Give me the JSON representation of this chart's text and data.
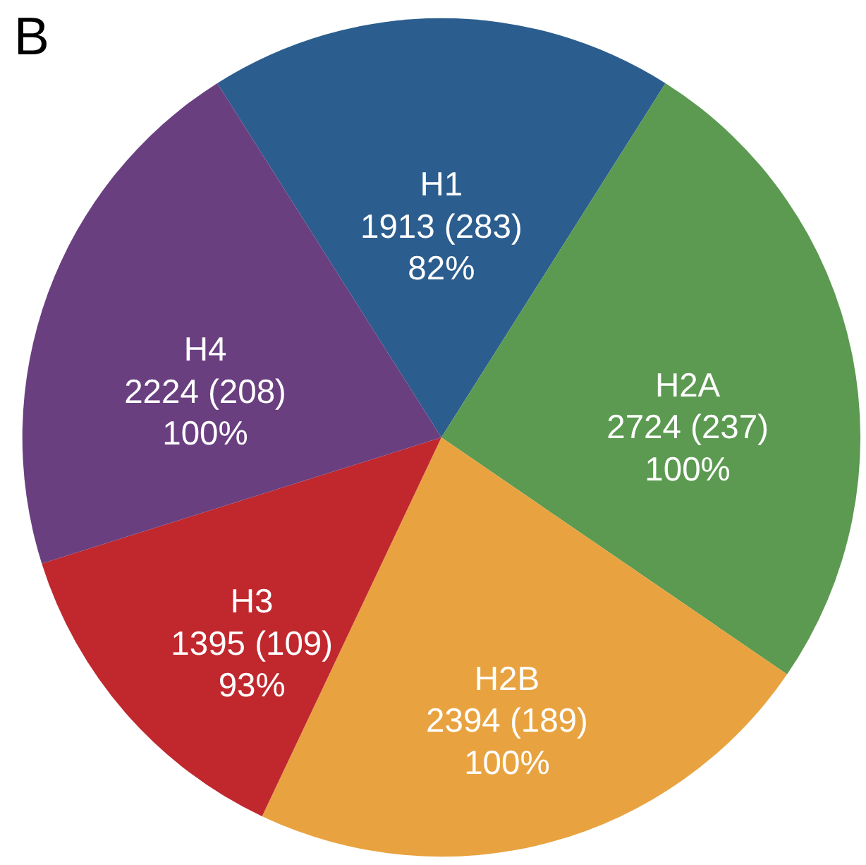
{
  "chart_data": {
    "type": "pie",
    "categories": [
      "H1",
      "H2A",
      "H2B",
      "H3",
      "H4"
    ],
    "values": [
      1913,
      2724,
      2394,
      1395,
      2224
    ],
    "value_labels": [
      "1913 (283)\n82%",
      "2724 (237)\n100%",
      "2394 (189)\n100%",
      "1395 (109)\n93%",
      "2224 (208)\n100%"
    ],
    "colors": [
      "#2b5d8e",
      "#5b9a50",
      "#e8a340",
      "#c0282e",
      "#6a3f80"
    ],
    "annotations": [
      "B"
    ],
    "legend": false
  }
}
